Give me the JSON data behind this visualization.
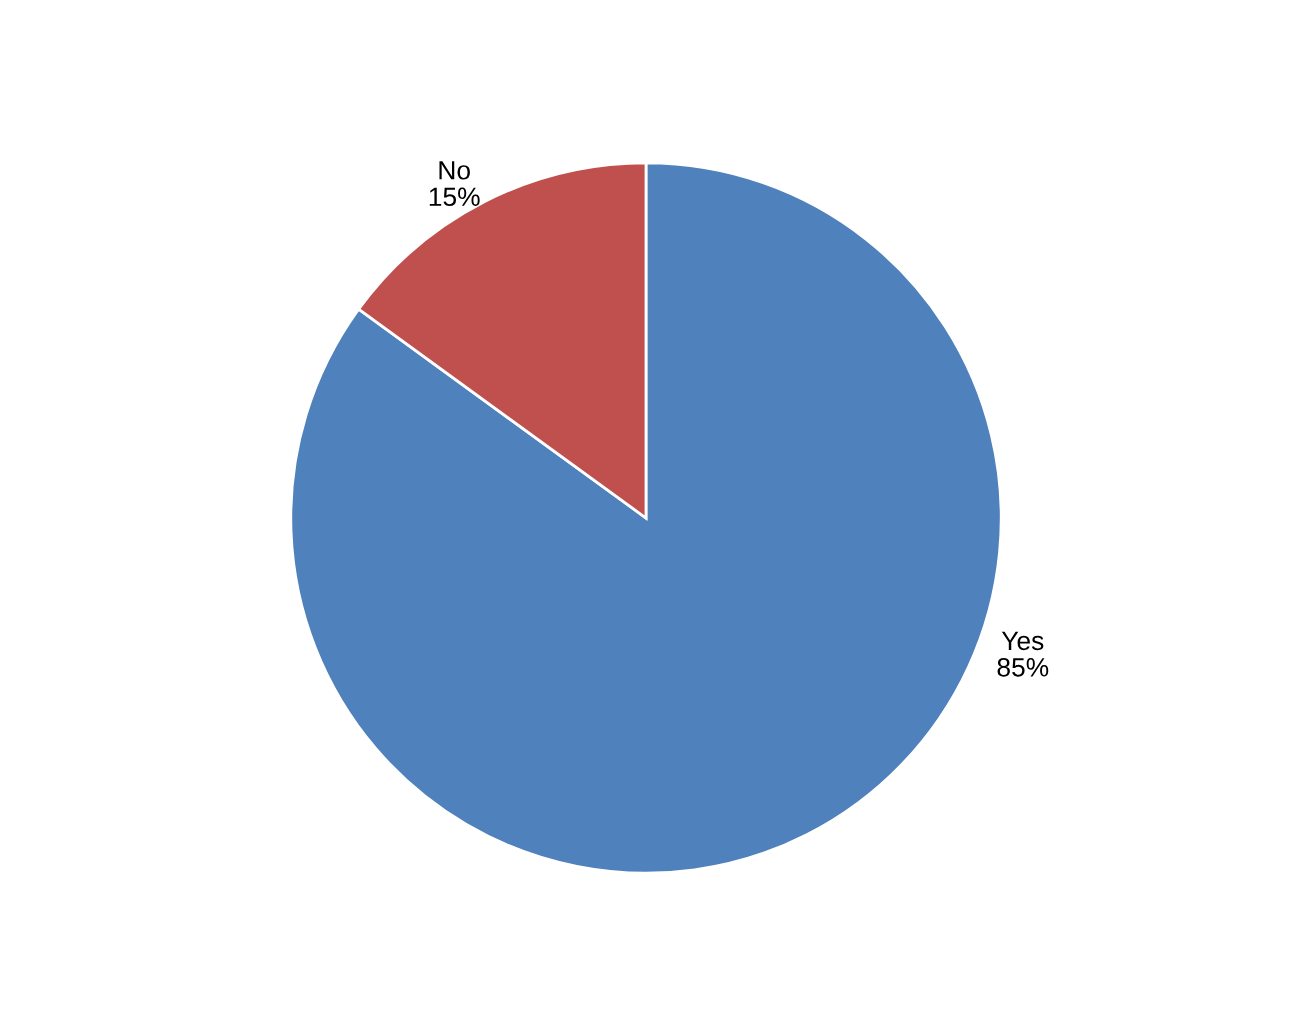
{
  "chart_data": {
    "type": "pie",
    "categories": [
      "Yes",
      "No"
    ],
    "values": [
      85,
      15
    ],
    "colors": [
      "#4f81bd",
      "#c0504d"
    ],
    "value_labels": [
      "85%",
      "15%"
    ]
  }
}
